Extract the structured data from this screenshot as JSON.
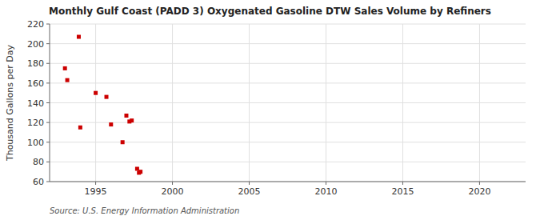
{
  "chart_data": {
    "type": "scatter",
    "title": "Monthly Gulf Coast (PADD 3) Oxygenated Gasoline DTW Sales Volume by Refiners",
    "ylabel": "Thousand Gallons per Day",
    "annotation": "Source: U.S. Energy Information Administration",
    "color": "#cc0000",
    "marker": "square",
    "grid": true,
    "xlim": [
      1992,
      2023
    ],
    "ylim": [
      60,
      220
    ],
    "xticks": [
      1995,
      2000,
      2005,
      2010,
      2015,
      2020
    ],
    "yticks": [
      60,
      80,
      100,
      120,
      140,
      160,
      180,
      200,
      220
    ],
    "x": [
      1993.0,
      1993.15,
      1993.9,
      1994.0,
      1995.0,
      1995.7,
      1996.0,
      1996.75,
      1997.0,
      1997.2,
      1997.35,
      1997.7,
      1997.82,
      1997.92
    ],
    "values": [
      175,
      163,
      207,
      115,
      150,
      146,
      118,
      100,
      127,
      121,
      122,
      73,
      69,
      70
    ]
  }
}
